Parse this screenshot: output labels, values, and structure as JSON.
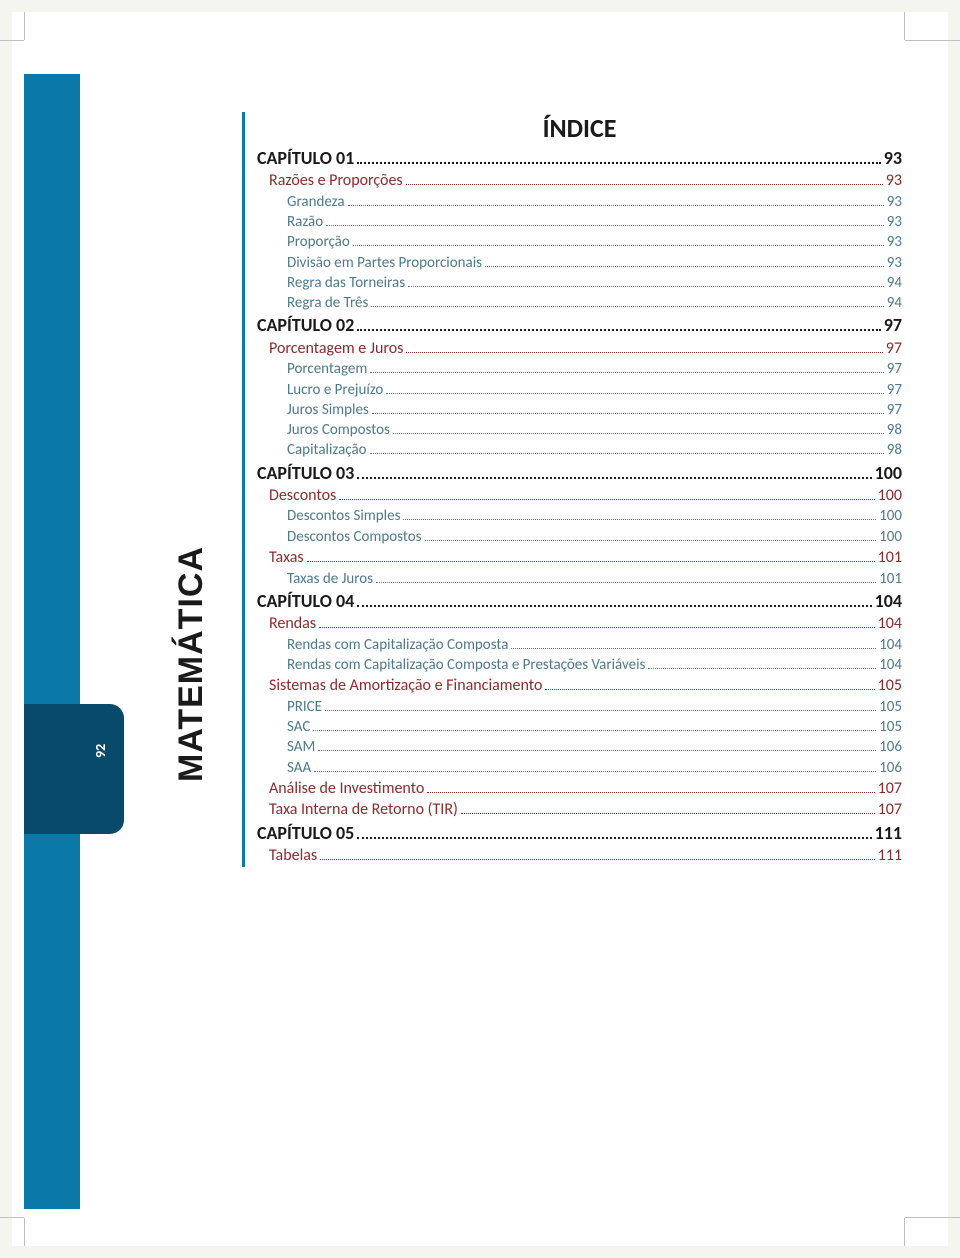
{
  "page_number": "92",
  "subject_label": "MATEMÁTICA",
  "toc_title": "ÍNDICE",
  "colors": {
    "blue_bar": "#0b79a8",
    "blue_tab": "#084a69",
    "chapter_text": "#1a1a1a",
    "section_text": "#8c2b2b",
    "sub_text": "#4e7a8c",
    "page_bg": "#ffffff",
    "body_bg": "#f5f5f0"
  },
  "entries": [
    {
      "level": "chapter",
      "label": "CAPÍTULO  01",
      "page": "93"
    },
    {
      "level": "section",
      "label": "Razões e Proporções",
      "page": "93"
    },
    {
      "level": "sub",
      "label": "Grandeza",
      "page": "93"
    },
    {
      "level": "sub",
      "label": "Razão",
      "page": "93"
    },
    {
      "level": "sub",
      "label": "Proporção",
      "page": "93"
    },
    {
      "level": "sub",
      "label": "Divisão em Partes Proporcionais",
      "page": "93"
    },
    {
      "level": "sub",
      "label": "Regra das Torneiras",
      "page": "94"
    },
    {
      "level": "sub",
      "label": "Regra de Três",
      "page": "94"
    },
    {
      "level": "chapter",
      "label": "CAPÍTULO  02",
      "page": "97"
    },
    {
      "level": "section",
      "label": "Porcentagem e Juros",
      "page": "97"
    },
    {
      "level": "sub",
      "label": "Porcentagem",
      "page": "97"
    },
    {
      "level": "sub",
      "label": "Lucro e Prejuízo",
      "page": "97"
    },
    {
      "level": "sub",
      "label": "Juros Simples",
      "page": "97"
    },
    {
      "level": "sub",
      "label": "Juros Compostos",
      "page": "98"
    },
    {
      "level": "sub",
      "label": "Capitalização",
      "page": "98"
    },
    {
      "level": "chapter",
      "label": "CAPÍTULO  03",
      "page": "100"
    },
    {
      "level": "section",
      "label": "Descontos",
      "page": "100"
    },
    {
      "level": "sub",
      "label": "Descontos Simples",
      "page": "100"
    },
    {
      "level": "sub",
      "label": "Descontos Compostos",
      "page": "100"
    },
    {
      "level": "section",
      "label": "Taxas",
      "page": "101"
    },
    {
      "level": "sub",
      "label": "Taxas de Juros",
      "page": "101"
    },
    {
      "level": "chapter",
      "label": "CAPÍTULO  04",
      "page": "104"
    },
    {
      "level": "section",
      "label": "Rendas",
      "page": "104"
    },
    {
      "level": "sub",
      "label": "Rendas com Capitalização Composta",
      "page": "104"
    },
    {
      "level": "sub",
      "label": "Rendas com Capitalização Composta e Prestações Variáveis",
      "page": "104"
    },
    {
      "level": "section",
      "label": "Sistemas de Amortização e Financiamento",
      "page": "105"
    },
    {
      "level": "sub",
      "label": "PRICE",
      "page": "105"
    },
    {
      "level": "sub",
      "label": "SAC",
      "page": "105"
    },
    {
      "level": "sub",
      "label": "SAM",
      "page": "106"
    },
    {
      "level": "sub",
      "label": "SAA",
      "page": "106"
    },
    {
      "level": "section",
      "label": "Análise de Investimento",
      "page": "107"
    },
    {
      "level": "section",
      "label": "Taxa Interna de Retorno (TIR)",
      "page": "107"
    },
    {
      "level": "chapter",
      "label": "CAPÍTULO  05",
      "page": "111"
    },
    {
      "level": "section",
      "label": "Tabelas",
      "page": "111"
    }
  ]
}
